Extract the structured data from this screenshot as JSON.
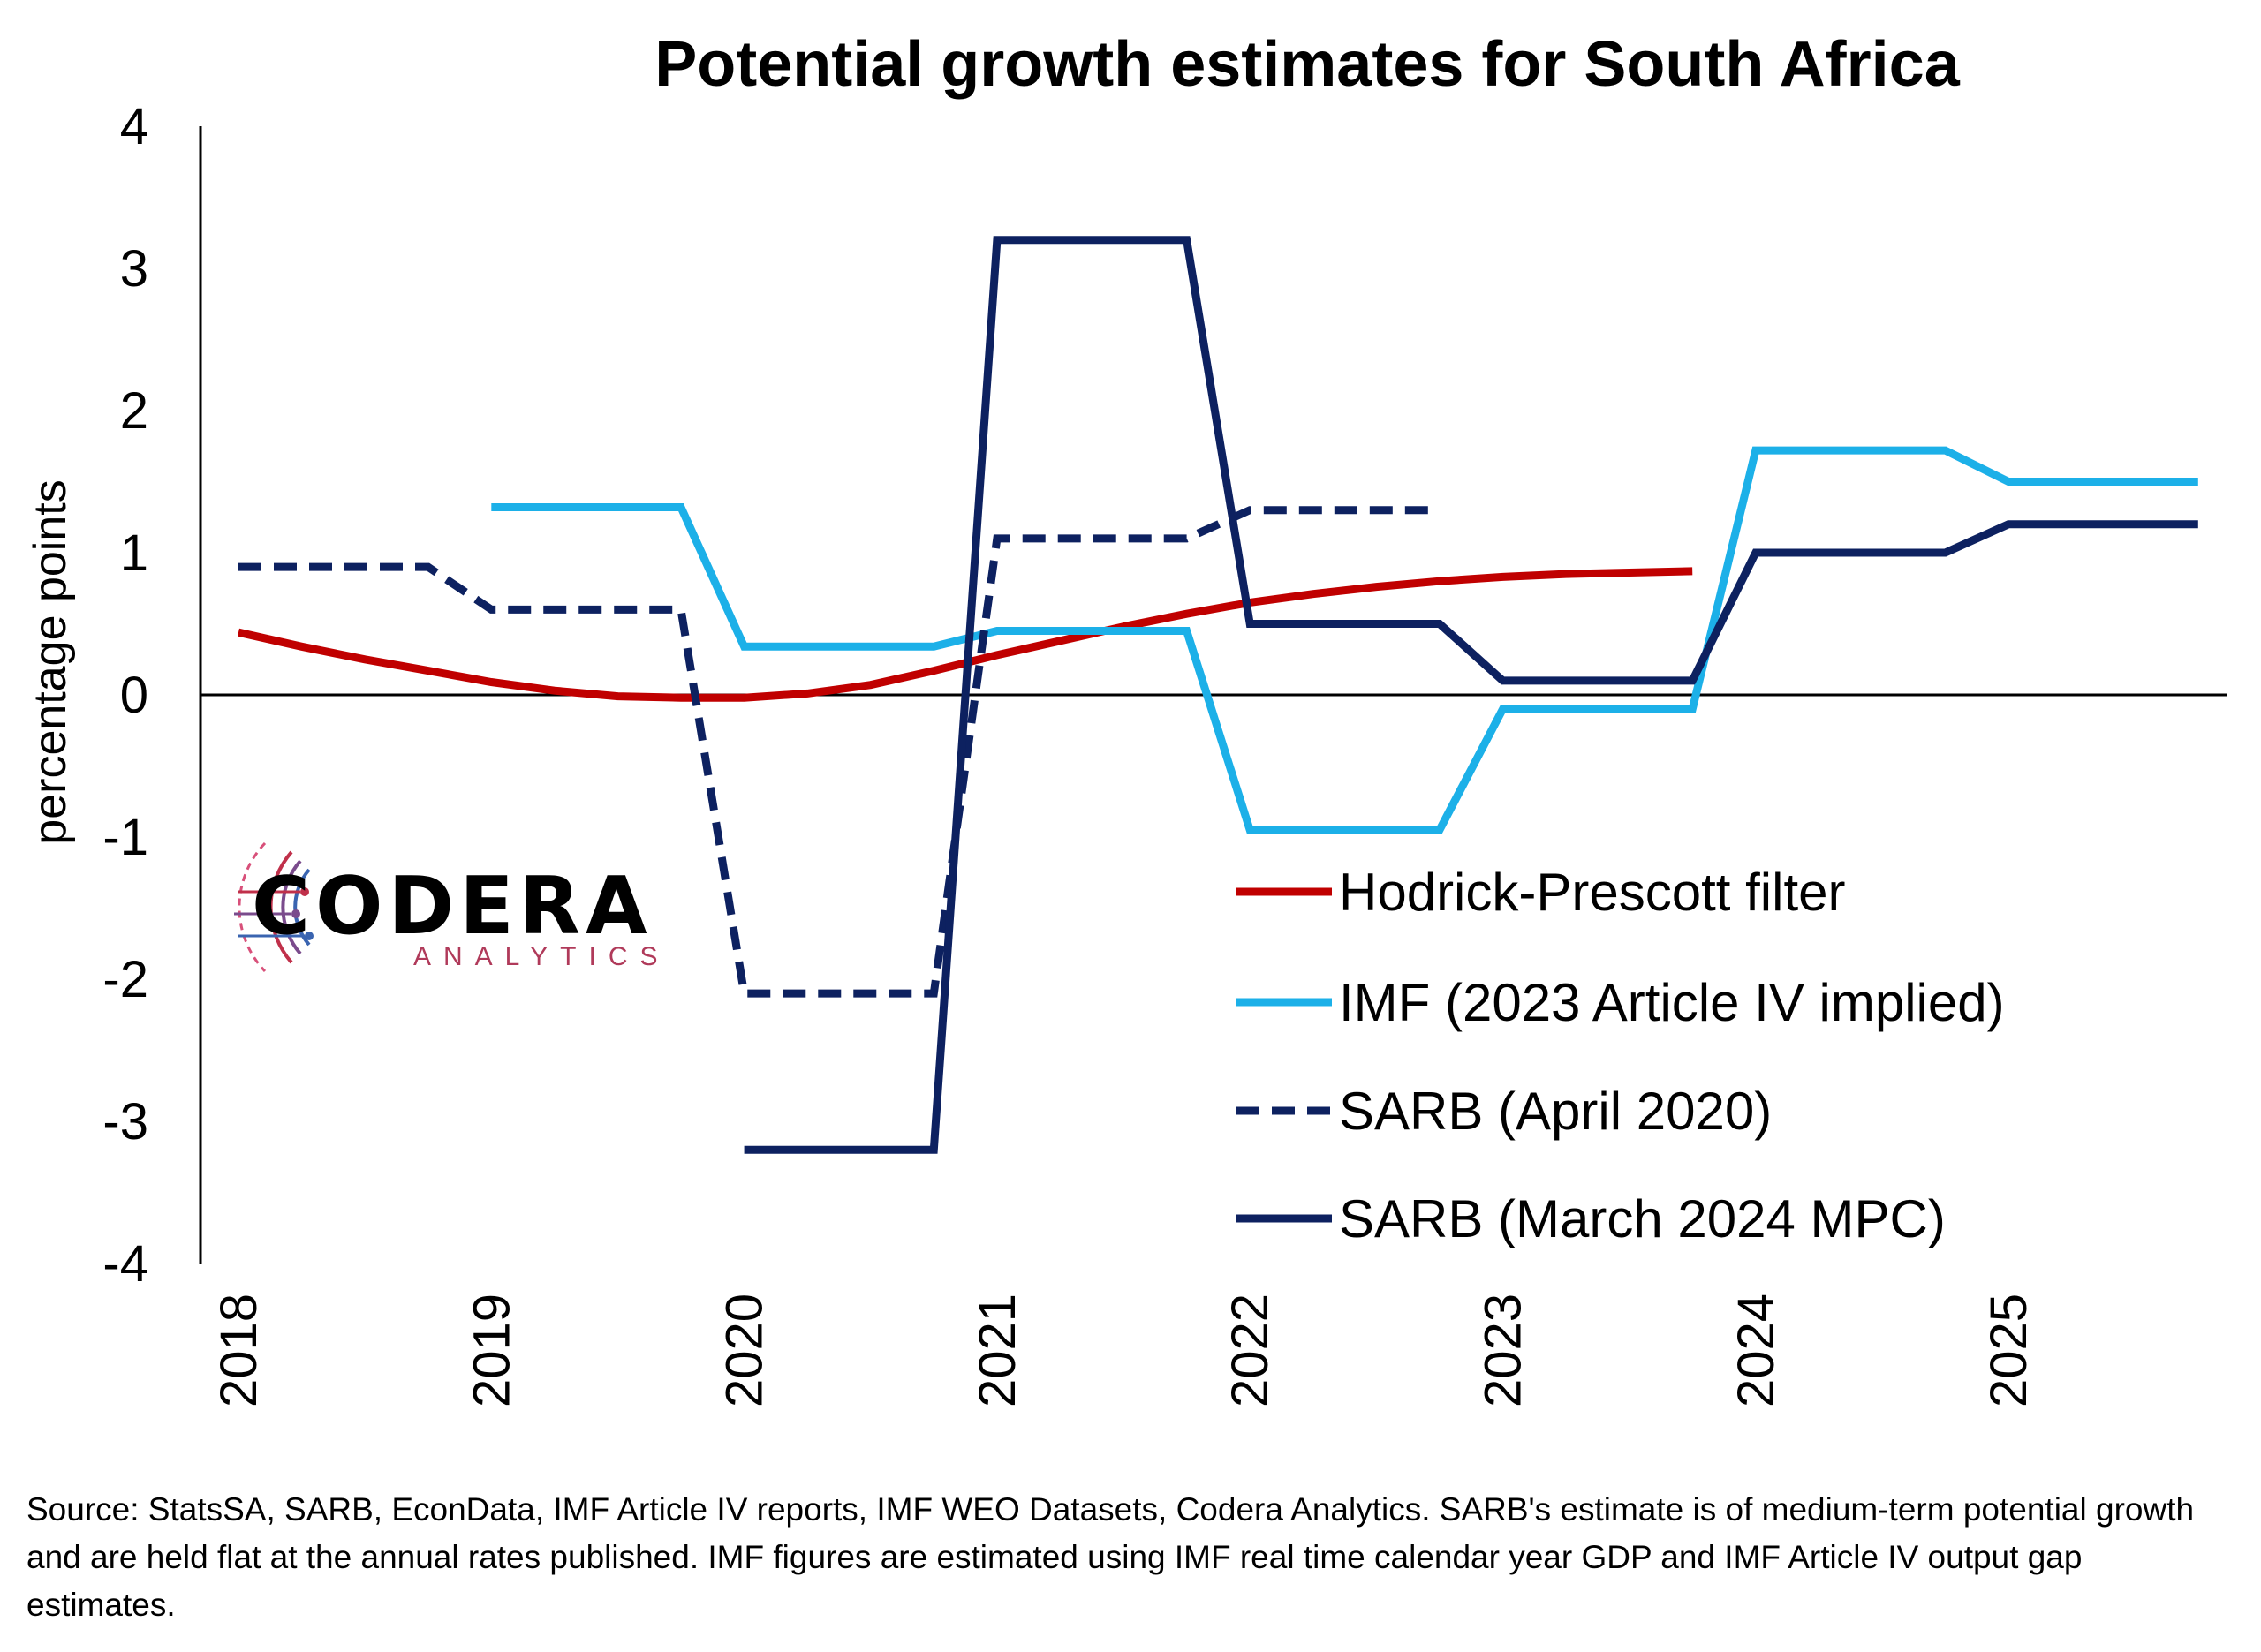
{
  "chart_data": {
    "type": "line",
    "title": "Potential growth estimates for South Africa",
    "ylabel": "percentage points",
    "xlabel": "",
    "ylim": [
      -4,
      4
    ],
    "yticks": [
      4,
      3,
      2,
      1,
      0,
      -1,
      -2,
      -3,
      -4
    ],
    "xlim": [
      2018.0,
      2026.0
    ],
    "xticks": [
      "2018",
      "2019",
      "2020",
      "2021",
      "2022",
      "2023",
      "2024",
      "2025"
    ],
    "legend_position": "right",
    "series": [
      {
        "name": "Hodrick-Prescott filter",
        "color": "#c00000",
        "style": "solid",
        "x": [
          2018.0,
          2018.25,
          2018.5,
          2018.75,
          2019.0,
          2019.25,
          2019.5,
          2019.75,
          2020.0,
          2020.25,
          2020.5,
          2020.75,
          2021.0,
          2021.25,
          2021.5,
          2021.75,
          2022.0,
          2022.25,
          2022.5,
          2022.75,
          2023.0,
          2023.25,
          2023.5,
          2023.75
        ],
        "values": [
          0.44,
          0.34,
          0.25,
          0.17,
          0.09,
          0.03,
          -0.01,
          -0.02,
          -0.02,
          0.01,
          0.07,
          0.17,
          0.28,
          0.38,
          0.48,
          0.57,
          0.65,
          0.71,
          0.76,
          0.8,
          0.83,
          0.85,
          0.86,
          0.87
        ]
      },
      {
        "name": "IMF (2023 Article IV implied)",
        "color": "#1cb0e8",
        "style": "solid",
        "x": [
          2019.0,
          2019.75,
          2020.0,
          2020.75,
          2021.0,
          2021.75,
          2022.0,
          2022.75,
          2023.0,
          2023.75,
          2024.0,
          2024.75,
          2025.0,
          2025.75
        ],
        "values": [
          1.32,
          1.32,
          0.34,
          0.34,
          0.45,
          0.45,
          -0.95,
          -0.95,
          -0.1,
          -0.1,
          1.72,
          1.72,
          1.5,
          1.5
        ]
      },
      {
        "name": "SARB (April 2020)",
        "color": "#0d2160",
        "style": "dashed",
        "x": [
          2018.0,
          2018.75,
          2019.0,
          2019.75,
          2020.0,
          2020.75,
          2021.0,
          2021.75,
          2022.0,
          2022.75
        ],
        "values": [
          0.9,
          0.9,
          0.6,
          0.6,
          -2.1,
          -2.1,
          1.1,
          1.1,
          1.3,
          1.3
        ]
      },
      {
        "name": "SARB (March 2024 MPC)",
        "color": "#0d2160",
        "style": "solid",
        "x": [
          2020.0,
          2020.75,
          2021.0,
          2021.75,
          2022.0,
          2022.75,
          2023.0,
          2023.75,
          2024.0,
          2024.75,
          2025.0,
          2025.75
        ],
        "values": [
          -3.2,
          -3.2,
          3.2,
          3.2,
          0.5,
          0.5,
          0.1,
          0.1,
          1.0,
          1.0,
          1.2,
          1.2
        ]
      }
    ]
  },
  "logo": {
    "name": "CODERA",
    "sub": "ANALYTICS"
  },
  "source_note": "Source: StatsSA, SARB, EconData, IMF Article IV reports, IMF WEO Datasets, Codera Analytics. SARB's estimate is of medium-term potential growth and are held flat at the annual rates published.  IMF figures are estimated using IMF real time calendar year GDP and IMF Article IV output gap estimates."
}
